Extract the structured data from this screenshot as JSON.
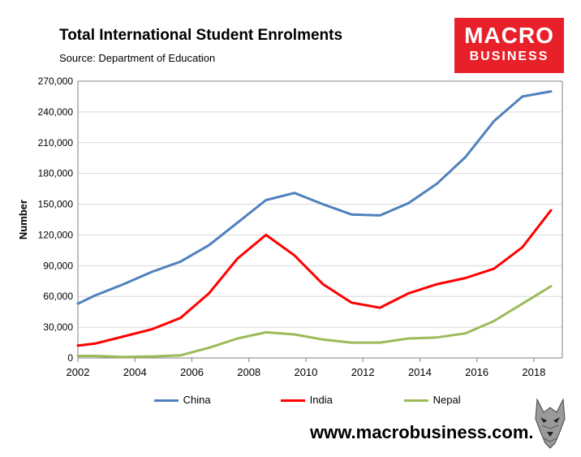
{
  "header": {
    "title": "Total International Student Enrolments",
    "source": "Source: Department of Education"
  },
  "logo": {
    "line1": "MACRO",
    "line2": "BUSINESS",
    "color": "#e8202a"
  },
  "footer": {
    "url": "www.macrobusiness.com.au",
    "emblem_icon": "wolf-head-icon"
  },
  "chart_data": {
    "type": "line",
    "title": "Total International Student Enrolments",
    "ylabel": "Number",
    "xlabel": "",
    "xlim": [
      2002,
      2019
    ],
    "ylim": [
      0,
      270000
    ],
    "x_ticks": [
      "2002",
      "2004",
      "2006",
      "2008",
      "2010",
      "2012",
      "2014",
      "2016",
      "2018"
    ],
    "y_ticks": [
      "0",
      "30,000",
      "60,000",
      "90,000",
      "120,000",
      "150,000",
      "180,000",
      "210,000",
      "240,000",
      "270,000"
    ],
    "grid": "horizontal",
    "legend_position": "bottom",
    "x": [
      2002,
      2002.6,
      2003.6,
      2004.6,
      2005.6,
      2006.6,
      2007.6,
      2008.6,
      2009.6,
      2010.6,
      2011.6,
      2012.6,
      2013.6,
      2014.6,
      2015.6,
      2016.6,
      2017.6,
      2018.6
    ],
    "series": [
      {
        "name": "China",
        "color": "#4f81bd",
        "values": [
          53000,
          61000,
          72000,
          84000,
          94000,
          110000,
          132000,
          154000,
          161000,
          150000,
          140000,
          139000,
          151000,
          170000,
          196000,
          231000,
          255000,
          260000
        ]
      },
      {
        "name": "India",
        "color": "#ff0000",
        "values": [
          12000,
          14000,
          21000,
          28000,
          39000,
          63000,
          97000,
          120000,
          100000,
          72000,
          54000,
          49000,
          63000,
          72000,
          78000,
          87000,
          108000,
          144000
        ]
      },
      {
        "name": "Nepal",
        "color": "#9bbb59",
        "values": [
          2000,
          2000,
          1000,
          1500,
          2500,
          10000,
          19000,
          25000,
          23000,
          18000,
          15000,
          15000,
          19000,
          20000,
          24000,
          36000,
          53000,
          70000
        ]
      }
    ]
  }
}
